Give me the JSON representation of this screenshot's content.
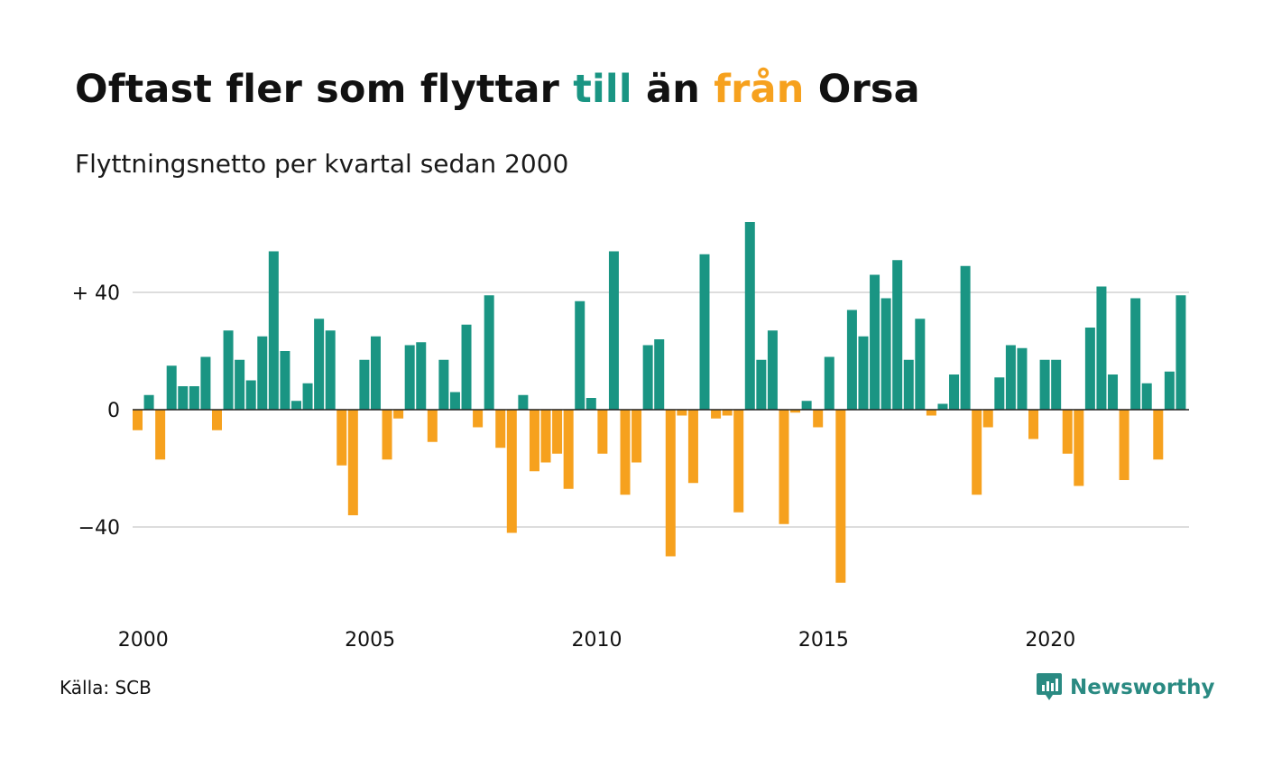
{
  "title": {
    "part1": "Oftast fler som flyttar ",
    "part2": "till",
    "part3": " än ",
    "part4": "från",
    "part5": " Orsa"
  },
  "subtitle": "Flyttningsnetto per kvartal sedan 2000",
  "source": "Källa: SCB",
  "brand": "Newsworthy",
  "chart_data": {
    "type": "bar",
    "title": "Oftast fler som flyttar till än från Orsa",
    "subtitle": "Flyttningsnetto per kvartal sedan 2000",
    "ylim": [
      -62,
      65
    ],
    "y_ticks": [
      {
        "value": 40,
        "label": "+ 40"
      },
      {
        "value": 0,
        "label": "0"
      },
      {
        "value": -40,
        "label": "−40"
      }
    ],
    "x_ticks": [
      {
        "year": 2000,
        "label": "2000"
      },
      {
        "year": 2005,
        "label": "2005"
      },
      {
        "year": 2010,
        "label": "2010"
      },
      {
        "year": 2015,
        "label": "2015"
      },
      {
        "year": 2020,
        "label": "2020"
      }
    ],
    "grid": true,
    "colors": {
      "positive": "#1a9583",
      "negative": "#f6a11e",
      "grid": "#dddddd",
      "axis": "#222222"
    },
    "start": "2000 Q1",
    "values": [
      -7,
      5,
      -17,
      15,
      8,
      8,
      18,
      -7,
      27,
      17,
      10,
      25,
      54,
      20,
      3,
      9,
      31,
      27,
      -19,
      -36,
      17,
      25,
      -17,
      -3,
      22,
      23,
      -11,
      17,
      6,
      29,
      -6,
      39,
      -13,
      -42,
      5,
      -21,
      -18,
      -15,
      -27,
      37,
      4,
      -15,
      54,
      -29,
      -18,
      22,
      24,
      -50,
      -2,
      -25,
      53,
      -3,
      -2,
      -35,
      64,
      17,
      27,
      -39,
      -1,
      3,
      -6,
      18,
      -59,
      34,
      25,
      46,
      38,
      51,
      17,
      31,
      -2,
      2,
      12,
      49,
      -29,
      -6,
      11,
      22,
      21,
      -10,
      17,
      17,
      -15,
      -26,
      28,
      42,
      12,
      -24,
      38,
      9,
      -17,
      13,
      39
    ]
  }
}
